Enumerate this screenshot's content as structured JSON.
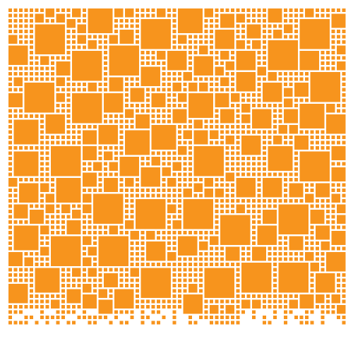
{
  "artwork": {
    "kind": "square-packing-mosaic",
    "fill_color": "#F7941D",
    "background_color": "#FFFFFF",
    "bottom_edge": "ragged"
  }
}
